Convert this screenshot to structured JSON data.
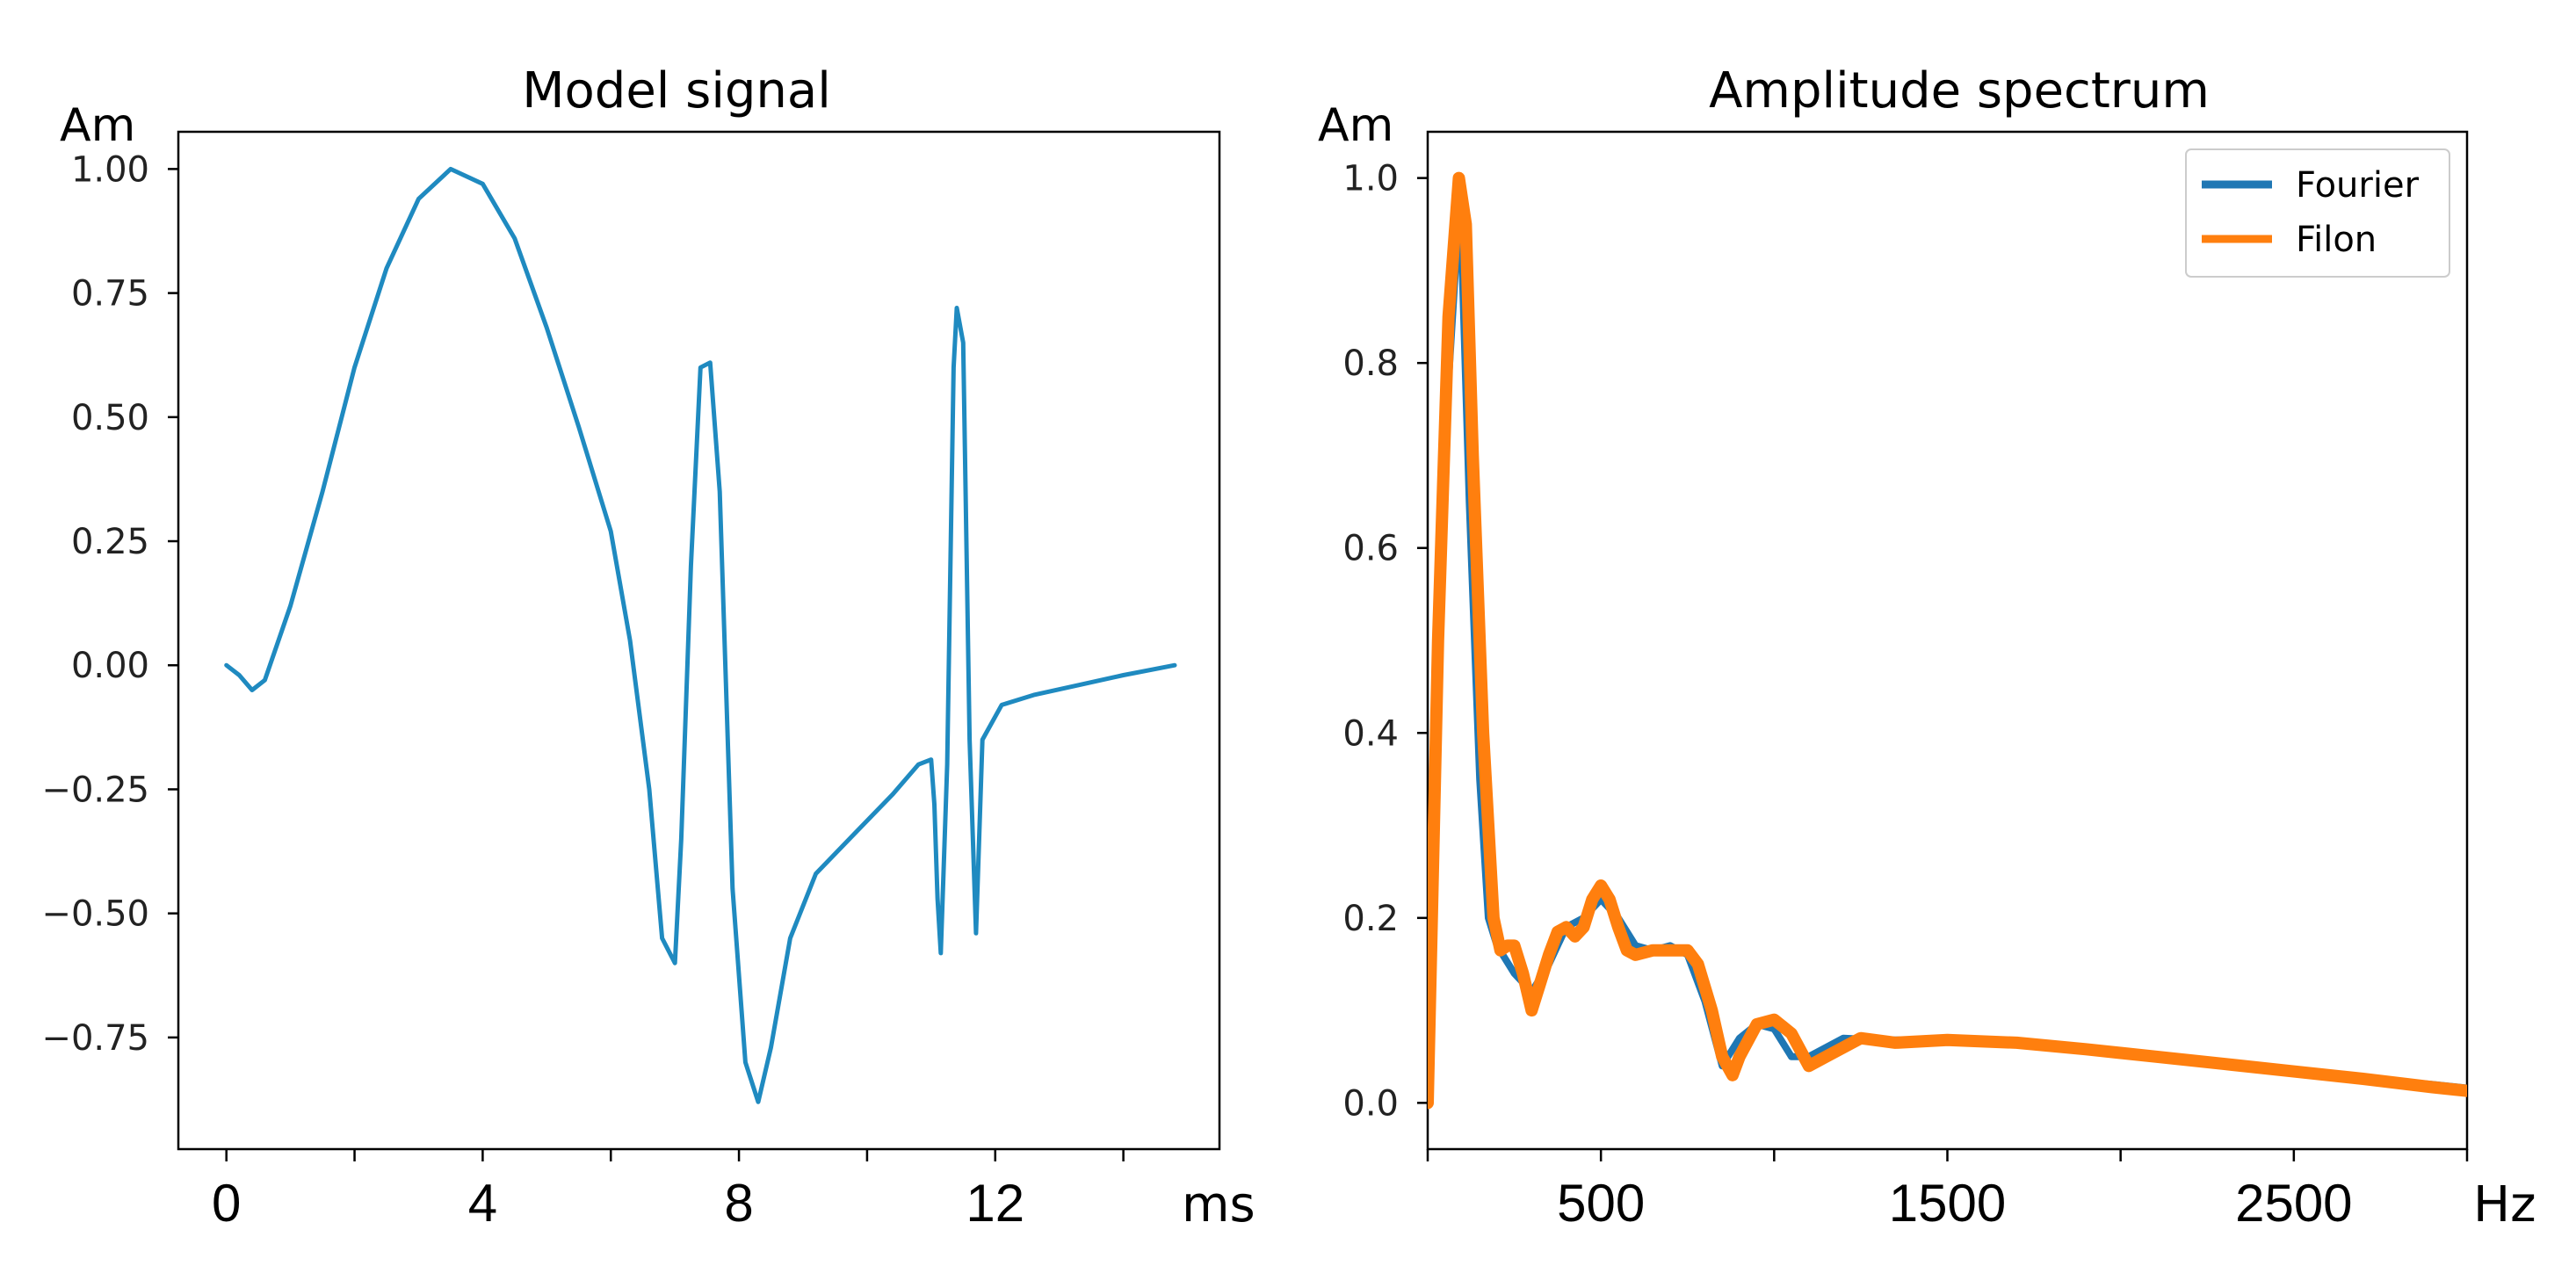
{
  "chart_data": [
    {
      "type": "line",
      "title": "Model signal",
      "ylabel": "Am",
      "xlabel": "ms",
      "xlim": [
        -0.75,
        15.5
      ],
      "ylim": [
        -0.975,
        1.075
      ],
      "xticks": [
        0,
        2,
        4,
        6,
        8,
        10,
        12,
        14
      ],
      "xtick_labels": [
        "0",
        "",
        "4",
        "",
        "8",
        "",
        "12",
        ""
      ],
      "yticks": [
        1.0,
        0.75,
        0.5,
        0.25,
        0.0,
        -0.25,
        -0.5,
        -0.75
      ],
      "ytick_labels": [
        "1.00",
        "0.75",
        "0.50",
        "0.25",
        "0.00",
        "−0.25",
        "−0.50",
        "−0.75"
      ],
      "grid": false,
      "series": [
        {
          "color": "#1f8ac0",
          "x": [
            0.0,
            0.2,
            0.4,
            0.6,
            1.0,
            1.5,
            2.0,
            2.5,
            3.0,
            3.5,
            4.0,
            4.5,
            5.0,
            5.5,
            6.0,
            6.3,
            6.6,
            6.8,
            7.0,
            7.1,
            7.25,
            7.4,
            7.55,
            7.7,
            7.9,
            8.1,
            8.3,
            8.5,
            8.8,
            9.2,
            9.8,
            10.4,
            10.8,
            11.0,
            11.05,
            11.1,
            11.15,
            11.25,
            11.35,
            11.4,
            11.5,
            11.6,
            11.7,
            11.8,
            12.1,
            12.6,
            13.3,
            14.0,
            14.8
          ],
          "y": [
            0.0,
            -0.02,
            -0.05,
            -0.03,
            0.12,
            0.35,
            0.6,
            0.8,
            0.94,
            1.0,
            0.97,
            0.86,
            0.68,
            0.48,
            0.27,
            0.05,
            -0.25,
            -0.55,
            -0.6,
            -0.35,
            0.2,
            0.6,
            0.61,
            0.35,
            -0.45,
            -0.8,
            -0.88,
            -0.77,
            -0.55,
            -0.42,
            -0.34,
            -0.26,
            -0.2,
            -0.19,
            -0.28,
            -0.47,
            -0.58,
            -0.2,
            0.6,
            0.72,
            0.65,
            -0.15,
            -0.54,
            -0.15,
            -0.08,
            -0.06,
            -0.04,
            -0.02,
            0.0
          ]
        }
      ]
    },
    {
      "type": "line",
      "title": "Amplitude spectrum",
      "ylabel": "Am",
      "xlabel": "Hz",
      "xlim": [
        0,
        3000
      ],
      "ylim": [
        -0.05,
        1.05
      ],
      "xticks": [
        0,
        500,
        1000,
        1500,
        2000,
        2500,
        3000
      ],
      "xtick_labels": [
        "",
        "500",
        "",
        "1500",
        "",
        "2500",
        ""
      ],
      "yticks": [
        1.0,
        0.8,
        0.6,
        0.4,
        0.2,
        0.0
      ],
      "ytick_labels": [
        "1.0",
        "0.8",
        "0.6",
        "0.4",
        "0.2",
        "0.0"
      ],
      "grid": false,
      "legend": "top-right",
      "series": [
        {
          "name": "Fourier",
          "color": "#1f77b4",
          "x": [
            0,
            30,
            60,
            85,
            100,
            120,
            150,
            175,
            200,
            250,
            300,
            350,
            400,
            450,
            500,
            550,
            600,
            650,
            700,
            750,
            800,
            850,
            900,
            950,
            1000,
            1050,
            1100,
            1200,
            1300,
            1500,
            1700,
            1900,
            2100,
            2300,
            2500,
            2700,
            2900,
            3000
          ],
          "y": [
            0.0,
            0.45,
            0.78,
            0.93,
            0.9,
            0.65,
            0.35,
            0.2,
            0.17,
            0.14,
            0.12,
            0.15,
            0.19,
            0.2,
            0.22,
            0.2,
            0.17,
            0.165,
            0.17,
            0.16,
            0.11,
            0.04,
            0.07,
            0.085,
            0.08,
            0.05,
            0.05,
            0.07,
            0.068,
            0.068,
            0.065,
            0.058,
            0.05,
            0.042,
            0.034,
            0.026,
            0.02,
            0.016
          ]
        },
        {
          "name": "Filon",
          "color": "#ff7f0e",
          "x": [
            0,
            30,
            60,
            90,
            110,
            130,
            160,
            190,
            210,
            230,
            250,
            275,
            300,
            325,
            350,
            375,
            400,
            425,
            450,
            475,
            500,
            525,
            550,
            575,
            600,
            650,
            700,
            750,
            780,
            820,
            850,
            880,
            900,
            950,
            1000,
            1050,
            1100,
            1150,
            1250,
            1350,
            1500,
            1700,
            1900,
            2100,
            2300,
            2500,
            2700,
            2900,
            3000
          ],
          "y": [
            0.0,
            0.5,
            0.85,
            1.0,
            0.95,
            0.7,
            0.4,
            0.2,
            0.165,
            0.17,
            0.17,
            0.14,
            0.1,
            0.13,
            0.16,
            0.185,
            0.19,
            0.18,
            0.19,
            0.22,
            0.235,
            0.22,
            0.19,
            0.165,
            0.16,
            0.165,
            0.165,
            0.165,
            0.15,
            0.1,
            0.05,
            0.03,
            0.05,
            0.085,
            0.09,
            0.075,
            0.04,
            0.05,
            0.07,
            0.065,
            0.068,
            0.065,
            0.058,
            0.05,
            0.042,
            0.034,
            0.026,
            0.017,
            0.013
          ]
        }
      ]
    }
  ]
}
